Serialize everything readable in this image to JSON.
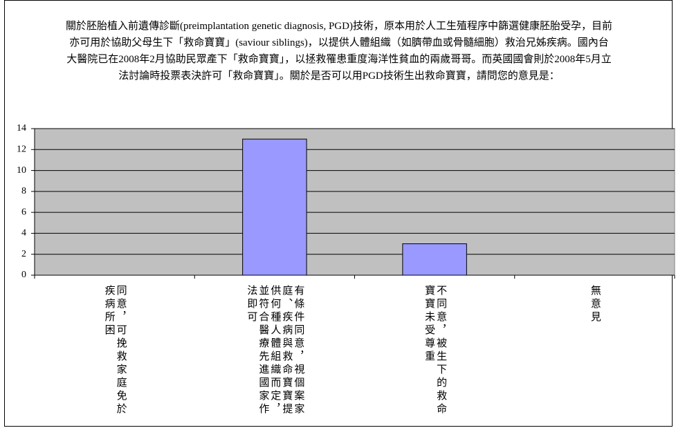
{
  "chart_data": {
    "type": "bar",
    "title": "關於胚胎植入前遺傳診斷(preimplantation genetic diagnosis, PGD)技術，原本用於人工生殖程序中篩選健康胚胎受孕，目前亦可用於協助父母生下「救命寶寶」(saviour siblings)，以提供人體組織（如臍帶血或骨髓細胞）救治兄姊疾病。國內台大醫院已在2008年2月協助民眾產下「救命寶寶」，以拯救罹患重度海洋性貧血的兩歲哥哥。而英國國會則於2008年5月立法討論時投票表決許可「救命寶寶」。關於是否可以用PGD技術生出救命寶寶，請問您的意見是：",
    "categories": [
      "同意，可挽救家庭免於疾病所困",
      "有條件同意，視個案家庭、疾病與救命寶寶提供何種人體組織而定，並符合醫療先進國家作法即可",
      "不同意，被生下的救命寶寶未受尊重",
      "無意見"
    ],
    "values": [
      0,
      13,
      3,
      0
    ],
    "color": "#9999ff",
    "ylim": [
      0,
      14
    ],
    "yticks": [
      0,
      2,
      4,
      6,
      8,
      10,
      12,
      14
    ],
    "grid": true
  }
}
